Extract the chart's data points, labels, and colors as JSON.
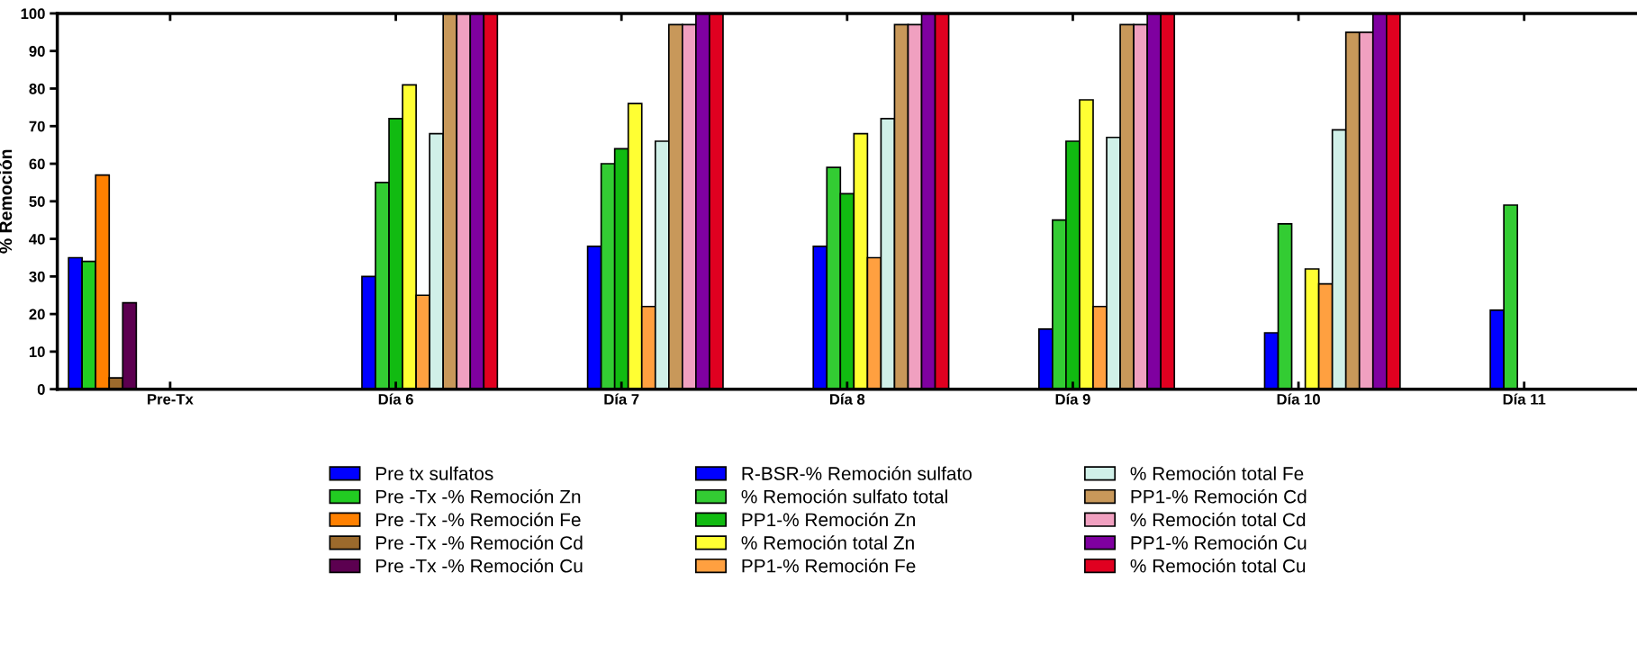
{
  "chart_data": {
    "type": "bar",
    "ylabel": "% Remoción",
    "categories": [
      "Pre-Tx",
      "Día 6",
      "Día 7",
      "Día 8",
      "Día 9",
      "Día 10",
      "Día 11"
    ],
    "ylim": [
      0,
      100
    ],
    "yticks": [
      0,
      10,
      20,
      30,
      40,
      50,
      60,
      70,
      80,
      90,
      100
    ],
    "grid": false,
    "legend": "bottom",
    "series": [
      {
        "name": "Pre tx sulfatos",
        "color": "#0000ff",
        "values": [
          35,
          null,
          null,
          null,
          null,
          null,
          null
        ]
      },
      {
        "name": "Pre -Tx -% Remoción Zn",
        "color": "#22cc22",
        "values": [
          34,
          null,
          null,
          null,
          null,
          null,
          null
        ]
      },
      {
        "name": "Pre -Tx -% Remoción Fe",
        "color": "#ff8000",
        "values": [
          57,
          null,
          null,
          null,
          null,
          null,
          null
        ]
      },
      {
        "name": "Pre -Tx -% Remoción Cd",
        "color": "#9c6a2c",
        "values": [
          3,
          null,
          null,
          null,
          null,
          null,
          null
        ]
      },
      {
        "name": "Pre -Tx -% Remoción Cu",
        "color": "#5c0050",
        "values": [
          23,
          null,
          null,
          null,
          null,
          null,
          null
        ]
      },
      {
        "name": "R-BSR-% Remoción sulfato",
        "color": "#0000ff",
        "values": [
          null,
          30,
          38,
          38,
          16,
          15,
          21
        ]
      },
      {
        "name": "% Remoción sulfato total",
        "color": "#33cc33",
        "values": [
          null,
          55,
          60,
          59,
          45,
          44,
          49
        ]
      },
      {
        "name": "PP1-% Remoción Zn",
        "color": "#11bb11",
        "values": [
          null,
          72,
          64,
          52,
          66,
          null,
          null
        ]
      },
      {
        "name": "% Remoción total Zn",
        "color": "#ffff33",
        "values": [
          null,
          81,
          76,
          68,
          77,
          32,
          null
        ]
      },
      {
        "name": "PP1-% Remoción Fe",
        "color": "#ffa040",
        "values": [
          null,
          25,
          22,
          35,
          22,
          28,
          null
        ]
      },
      {
        "name": "% Remoción total Fe",
        "color": "#d0f0e8",
        "values": [
          null,
          68,
          66,
          72,
          67,
          69,
          null
        ]
      },
      {
        "name": "PP1-% Remoción Cd",
        "color": "#c8985a",
        "values": [
          null,
          100,
          97,
          97,
          97,
          95,
          null
        ]
      },
      {
        "name": "% Remoción total Cd",
        "color": "#f0a0c0",
        "values": [
          null,
          100,
          97,
          97,
          97,
          95,
          null
        ]
      },
      {
        "name": "PP1-% Remoción Cu",
        "color": "#7f00a0",
        "values": [
          null,
          100,
          100,
          100,
          100,
          100,
          null
        ]
      },
      {
        "name": "% Remoción total Cu",
        "color": "#e00020",
        "values": [
          null,
          100,
          100,
          100,
          100,
          100,
          null
        ]
      }
    ]
  }
}
